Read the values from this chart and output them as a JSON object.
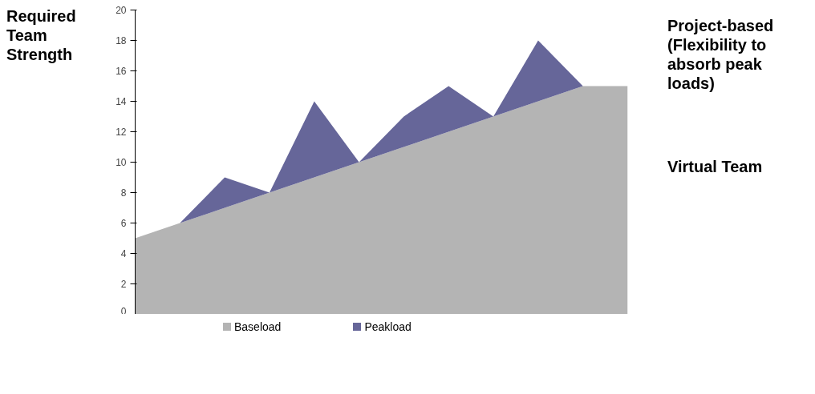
{
  "chart_data": {
    "type": "area",
    "stacked": true,
    "ylabel": "Required Team Strength",
    "categories": [
      null,
      null,
      null,
      null,
      null,
      null,
      null,
      null,
      null,
      null,
      null,
      null
    ],
    "series": [
      {
        "name": "Baseload",
        "color": "#b4b4b4",
        "values": [
          5,
          6,
          7,
          8,
          9,
          10,
          11,
          12,
          13,
          14,
          15,
          15
        ]
      },
      {
        "name": "Peakload",
        "color": "#666699",
        "values": [
          0,
          0,
          2,
          0,
          5,
          0,
          2,
          3,
          0,
          4,
          0,
          0
        ]
      }
    ],
    "ylim": [
      0,
      20
    ],
    "yticks": [
      0,
      2,
      4,
      6,
      8,
      10,
      12,
      14,
      16,
      18,
      20
    ],
    "grid": false,
    "legend": "bottom",
    "annotations": [
      "Project-based (Flexibility to absorb peak loads)",
      "Virtual Team"
    ]
  }
}
